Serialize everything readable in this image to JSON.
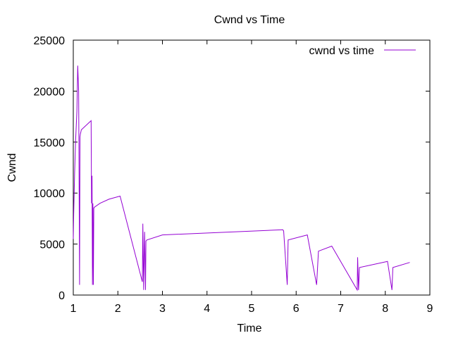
{
  "chart_data": {
    "type": "line",
    "title": "Cwnd vs Time",
    "xlabel": "Time",
    "ylabel": "Cwnd",
    "xlim": [
      1,
      9
    ],
    "ylim": [
      0,
      25000
    ],
    "x_ticks": [
      1,
      2,
      3,
      4,
      5,
      6,
      7,
      8,
      9
    ],
    "y_ticks": [
      0,
      5000,
      10000,
      15000,
      20000,
      25000
    ],
    "grid": false,
    "legend_position": "top-right",
    "series": [
      {
        "name": "cwnd vs time",
        "color": "#9400d3",
        "x": [
          1.0,
          1.01,
          1.03,
          1.05,
          1.08,
          1.1,
          1.12,
          1.13,
          1.14,
          1.15,
          1.16,
          1.17,
          1.18,
          1.4,
          1.41,
          1.42,
          1.43,
          1.44,
          1.45,
          1.46,
          1.47,
          1.6,
          1.8,
          2.05,
          2.55,
          2.56,
          2.58,
          2.6,
          2.62,
          2.63,
          2.65,
          3.0,
          5.7,
          5.72,
          5.8,
          5.82,
          6.25,
          6.46,
          6.5,
          6.8,
          7.37,
          7.38,
          7.4,
          7.42,
          8.05,
          8.15,
          8.17,
          8.55
        ],
        "y": [
          5500,
          8000,
          12000,
          15000,
          18000,
          22500,
          20000,
          12000,
          1000,
          15500,
          15800,
          16000,
          16200,
          17100,
          9000,
          11700,
          1000,
          9000,
          1000,
          8500,
          8600,
          9000,
          9400,
          9700,
          1300,
          7000,
          500,
          6200,
          500,
          5300,
          5400,
          5900,
          6400,
          6300,
          1000,
          5400,
          5900,
          1000,
          4300,
          4800,
          500,
          3700,
          500,
          2700,
          3300,
          500,
          2700,
          3200
        ]
      }
    ]
  }
}
